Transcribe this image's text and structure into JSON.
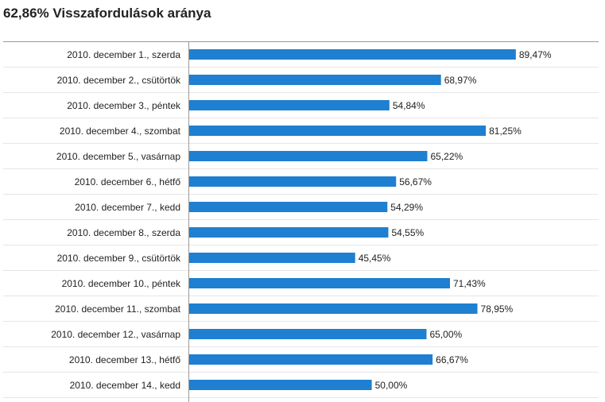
{
  "header": {
    "title": "62,86% Visszafordulások aránya"
  },
  "colors": {
    "bar": "#1f7fd0",
    "grid": "#e6e6e6",
    "axis": "#999999",
    "text": "#222222"
  },
  "chart_data": {
    "type": "bar",
    "orientation": "horizontal",
    "title": "62,86% Visszafordulások aránya",
    "categories": [
      "2010. december 1., szerda",
      "2010. december 2., csütörtök",
      "2010. december 3., péntek",
      "2010. december 4., szombat",
      "2010. december 5., vasárnap",
      "2010. december 6., hétfő",
      "2010. december 7., kedd",
      "2010. december 8., szerda",
      "2010. december 9., csütörtök",
      "2010. december 10., péntek",
      "2010. december 11., szombat",
      "2010. december 12., vasárnap",
      "2010. december 13., hétfő",
      "2010. december 14., kedd"
    ],
    "values": [
      89.47,
      68.97,
      54.84,
      81.25,
      65.22,
      56.67,
      54.29,
      54.55,
      45.45,
      71.43,
      78.95,
      65.0,
      66.67,
      50.0
    ],
    "value_labels": [
      "89,47%",
      "68,97%",
      "54,84%",
      "81,25%",
      "65,22%",
      "56,67%",
      "54,29%",
      "54,55%",
      "45,45%",
      "71,43%",
      "78,95%",
      "65,00%",
      "66,67%",
      "50,00%"
    ],
    "xlim": [
      0,
      100
    ],
    "grid": true,
    "legend": "none"
  }
}
